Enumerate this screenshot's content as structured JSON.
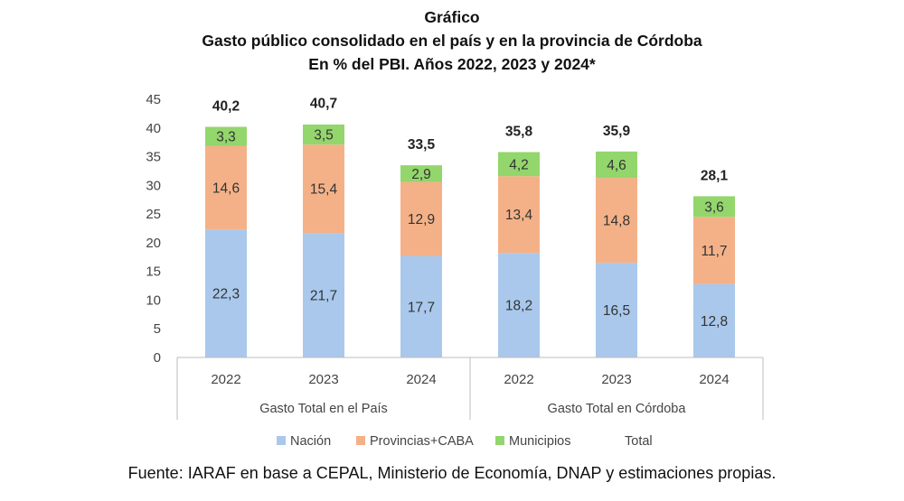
{
  "chart_data": {
    "type": "bar",
    "stacked": true,
    "title_lines": [
      "Gráfico",
      "Gasto público consolidado en el país y en la provincia de Córdoba",
      "En % del PBI. Años 2022, 2023 y 2024*"
    ],
    "categories": [
      "2022",
      "2023",
      "2024",
      "2022",
      "2023",
      "2024"
    ],
    "groups": [
      {
        "label": "Gasto Total en el País",
        "count": 3
      },
      {
        "label": "Gasto Total en Córdoba",
        "count": 3
      }
    ],
    "series": [
      {
        "name": "Nación",
        "values": [
          22.3,
          21.7,
          17.7,
          18.2,
          16.5,
          12.8
        ],
        "labels": [
          "22,3",
          "21,7",
          "17,7",
          "18,2",
          "16,5",
          "12,8"
        ],
        "color": "#a9c8ec"
      },
      {
        "name": "Provincias+CABA",
        "values": [
          14.6,
          15.4,
          12.9,
          13.4,
          14.8,
          11.7
        ],
        "labels": [
          "14,6",
          "15,4",
          "12,9",
          "13,4",
          "14,8",
          "11,7"
        ],
        "color": "#f4b188"
      },
      {
        "name": "Municipios",
        "values": [
          3.3,
          3.5,
          2.9,
          4.2,
          4.6,
          3.6
        ],
        "labels": [
          "3,3",
          "3,5",
          "2,9",
          "4,2",
          "4,6",
          "3,6"
        ],
        "color": "#93d66c"
      }
    ],
    "total": {
      "name": "Total",
      "values": [
        40.2,
        40.7,
        33.5,
        35.8,
        35.9,
        28.1
      ],
      "labels": [
        "40,2",
        "40,7",
        "33,5",
        "35,8",
        "35,9",
        "28,1"
      ]
    },
    "yticks": [
      "0",
      "5",
      "10",
      "15",
      "20",
      "25",
      "30",
      "35",
      "40",
      "45"
    ],
    "ylim": [
      0,
      45
    ],
    "grid": false,
    "legend": "bottom"
  },
  "source": "Fuente: IARAF en base a CEPAL, Ministerio de Economía, DNAP y estimaciones propias."
}
